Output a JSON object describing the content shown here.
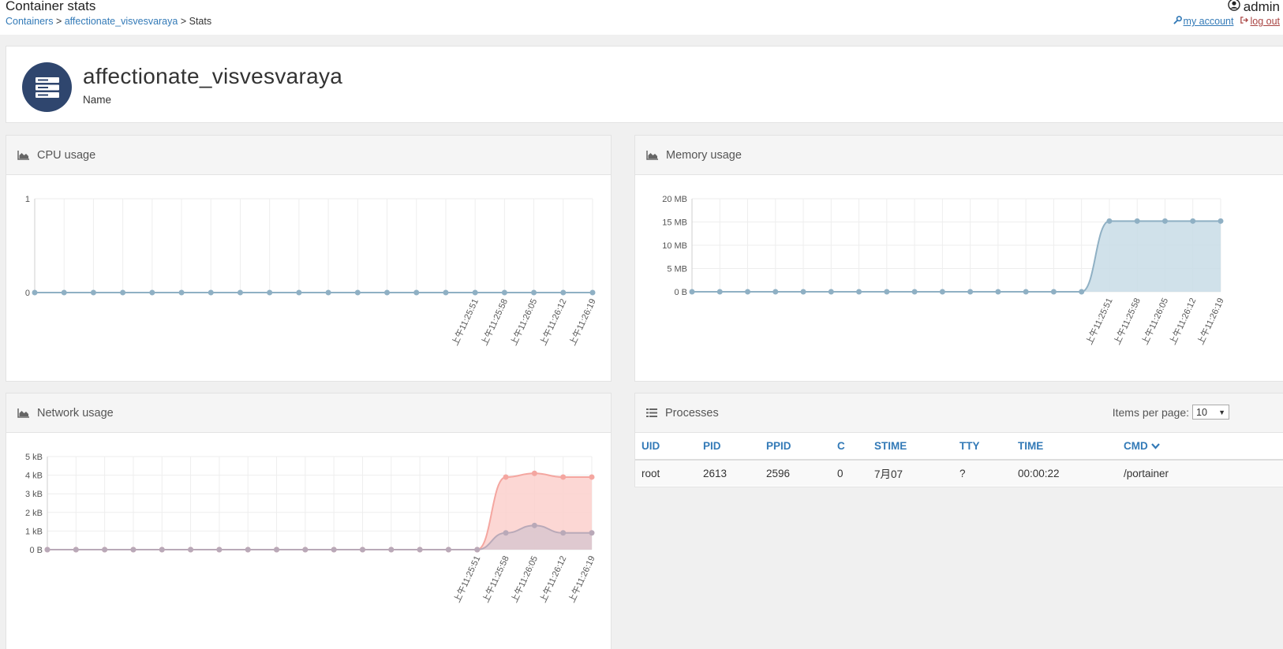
{
  "header": {
    "title": "Container stats",
    "breadcrumb": {
      "containers": "Containers",
      "sep1": ">",
      "container": "affectionate_visvesvaraya",
      "sep2": ">",
      "current": "Stats"
    },
    "user": "admin",
    "my_account": "my account",
    "log_out": "log out"
  },
  "container": {
    "name": "affectionate_visvesvaraya",
    "name_label": "Name"
  },
  "cpu": {
    "title": "CPU usage",
    "chart_data": {
      "type": "line",
      "ylim": [
        0,
        1
      ],
      "yticks": [
        "1",
        "0"
      ],
      "x_tick_labels": [
        "上午11:25:51",
        "上午11:25:58",
        "上午11:26:05",
        "上午11:26:12",
        "上午11:26:19"
      ],
      "series": [
        {
          "values": [
            0,
            0,
            0,
            0,
            0,
            0,
            0,
            0,
            0,
            0,
            0,
            0,
            0,
            0,
            0,
            0,
            0,
            0,
            0,
            0
          ]
        }
      ],
      "grid": true,
      "color": "#8fb0c4"
    }
  },
  "memory": {
    "title": "Memory usage",
    "chart_data": {
      "type": "area",
      "ylim": [
        0,
        20
      ],
      "yticks": [
        "20 MB",
        "15 MB",
        "10 MB",
        "5 MB",
        "0 B"
      ],
      "x_tick_labels": [
        "上午11:25:51",
        "上午11:25:58",
        "上午11:26:05",
        "上午11:26:12",
        "上午11:26:19"
      ],
      "series": [
        {
          "values": [
            0,
            0,
            0,
            0,
            0,
            0,
            0,
            0,
            0,
            0,
            0,
            0,
            0,
            0,
            0,
            15.2,
            15.2,
            15.2,
            15.2,
            15.2
          ]
        }
      ],
      "grid": true,
      "color": "#8fb0c4"
    }
  },
  "network": {
    "title": "Network usage",
    "chart_data": {
      "type": "area",
      "ylim": [
        0,
        5
      ],
      "yticks": [
        "5 kB",
        "4 kB",
        "3 kB",
        "2 kB",
        "1 kB",
        "0 B"
      ],
      "x_tick_labels": [
        "上午11:25:51",
        "上午11:25:58",
        "上午11:26:05",
        "上午11:26:12",
        "上午11:26:19"
      ],
      "series": [
        {
          "values": [
            0,
            0,
            0,
            0,
            0,
            0,
            0,
            0,
            0,
            0,
            0,
            0,
            0,
            0,
            0,
            0,
            3.9,
            4.1,
            3.9,
            3.9
          ],
          "color": "#f4a6a0"
        },
        {
          "values": [
            0,
            0,
            0,
            0,
            0,
            0,
            0,
            0,
            0,
            0,
            0,
            0,
            0,
            0,
            0,
            0,
            0.9,
            1.3,
            0.9,
            0.9
          ],
          "color": "#b9a9b8"
        }
      ],
      "grid": true
    }
  },
  "processes": {
    "title": "Processes",
    "items_per_page_label": "Items per page:",
    "items_per_page_value": "10",
    "columns": [
      "UID",
      "PID",
      "PPID",
      "C",
      "STIME",
      "TTY",
      "TIME",
      "CMD"
    ],
    "rows": [
      [
        "root",
        "2613",
        "2596",
        "0",
        "7月07",
        "?",
        "00:00:22",
        "/portainer"
      ]
    ]
  },
  "icons": {
    "user": "user-circle-icon",
    "wrench": "wrench-icon",
    "logout": "sign-out-icon",
    "server": "server-icon",
    "area_chart": "area-chart-icon",
    "list": "list-icon",
    "sort": "chevron-down-icon"
  },
  "colors": {
    "link": "#337ab7",
    "logout": "#a94442",
    "avatar": "#2f466e",
    "memory_fill": "#c8dce6",
    "network_rx": "#fbd0cc",
    "network_tx": "#d9c7cf"
  }
}
